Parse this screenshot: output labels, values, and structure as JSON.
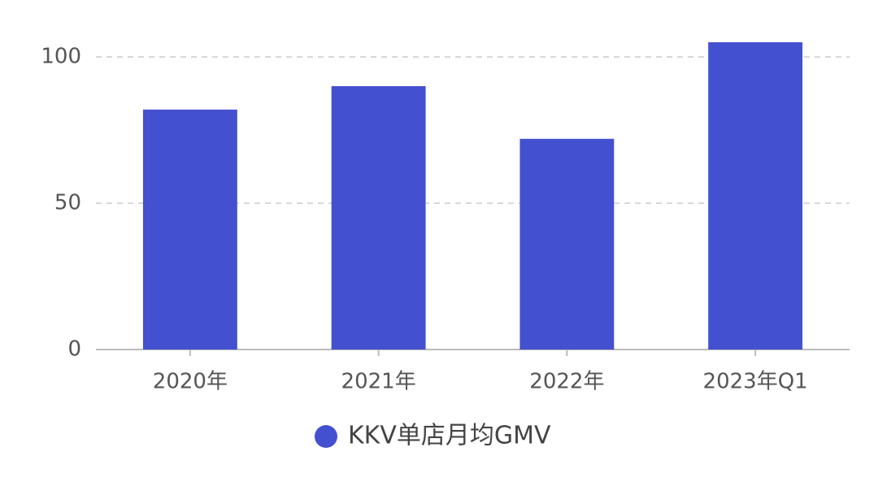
{
  "chart_data": {
    "type": "bar",
    "categories": [
      "2020年",
      "2021年",
      "2022年",
      "2023年Q1"
    ],
    "series": [
      {
        "name": "KKV单店月均GMV",
        "color": "#4350cf",
        "values": [
          82,
          90,
          72,
          105
        ]
      }
    ],
    "ylim": [
      0,
      110
    ],
    "yticks": [
      0,
      50,
      100
    ],
    "grid": true,
    "legend": "bottom"
  }
}
